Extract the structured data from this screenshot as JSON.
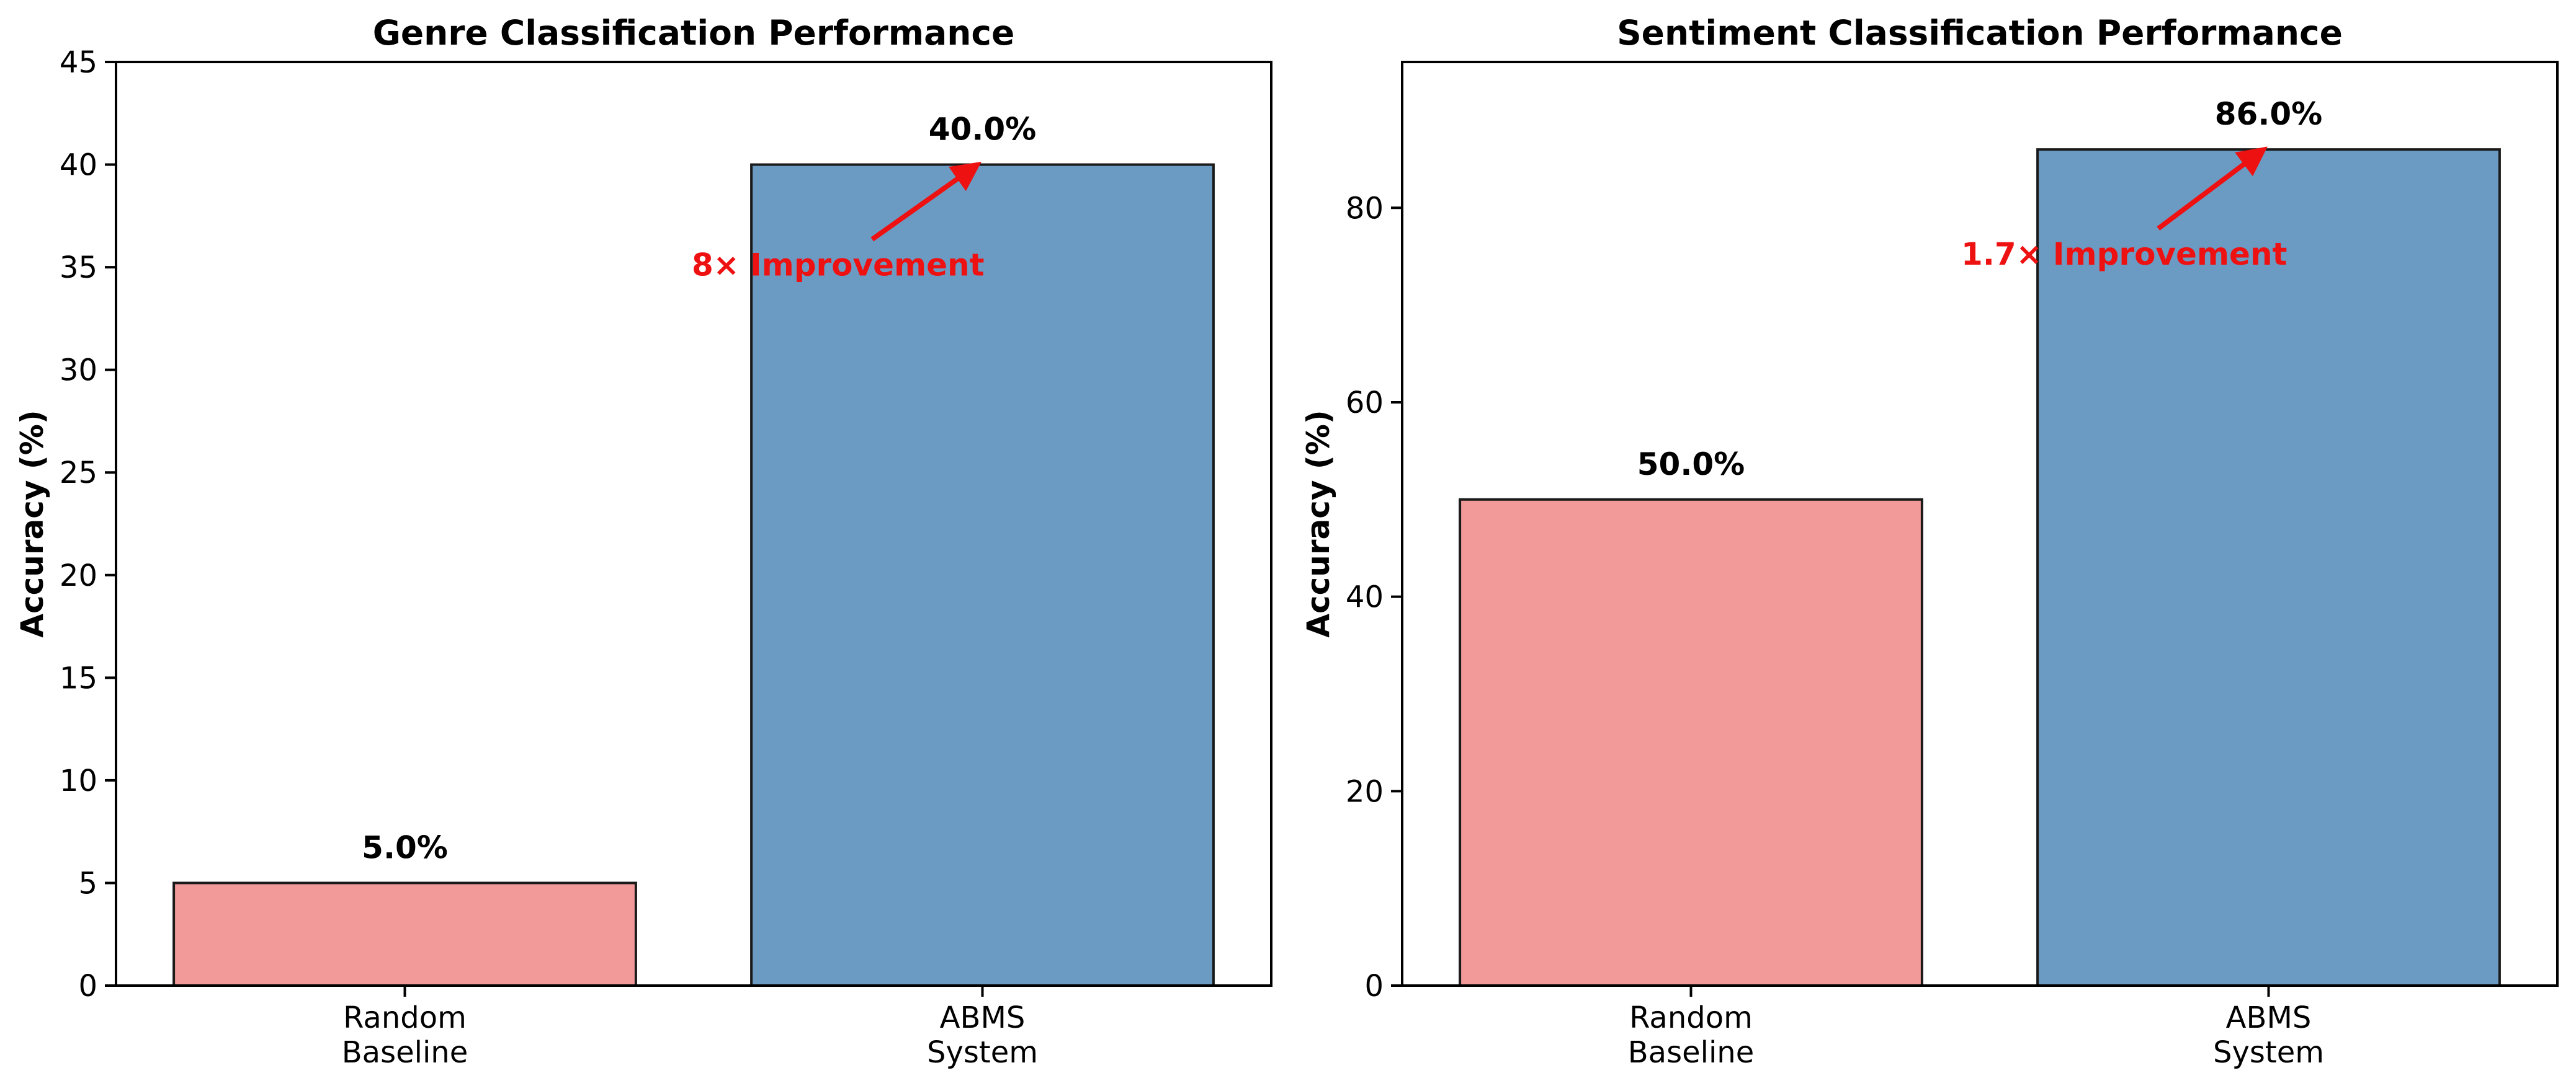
{
  "chart_data": [
    {
      "type": "bar",
      "title": "Genre Classification Performance",
      "ylabel": "Accuracy (%)",
      "categories": [
        [
          "Random",
          "Baseline"
        ],
        [
          "ABMS",
          "System"
        ]
      ],
      "values": [
        5.0,
        40.0
      ],
      "value_labels": [
        "5.0%",
        "40.0%"
      ],
      "colors": [
        "#f29999",
        "#6b9bc3"
      ],
      "ylim": [
        0,
        45
      ],
      "yticks": [
        0,
        5,
        10,
        15,
        20,
        25,
        30,
        35,
        40,
        45
      ],
      "grid": false,
      "annotation": {
        "text": "8× Improvement",
        "text_y": 35,
        "target_bar": 1,
        "target_y": 40
      }
    },
    {
      "type": "bar",
      "title": "Sentiment Classification Performance",
      "ylabel": "Accuracy (%)",
      "categories": [
        [
          "Random",
          "Baseline"
        ],
        [
          "ABMS",
          "System"
        ]
      ],
      "values": [
        50.0,
        86.0
      ],
      "value_labels": [
        "50.0%",
        "86.0%"
      ],
      "colors": [
        "#f29999",
        "#6b9bc3"
      ],
      "ylim": [
        0,
        95
      ],
      "yticks": [
        0,
        20,
        40,
        60,
        80
      ],
      "grid": false,
      "annotation": {
        "text": "1.7× Improvement",
        "text_y": 75,
        "target_bar": 1,
        "target_y": 86
      }
    }
  ]
}
